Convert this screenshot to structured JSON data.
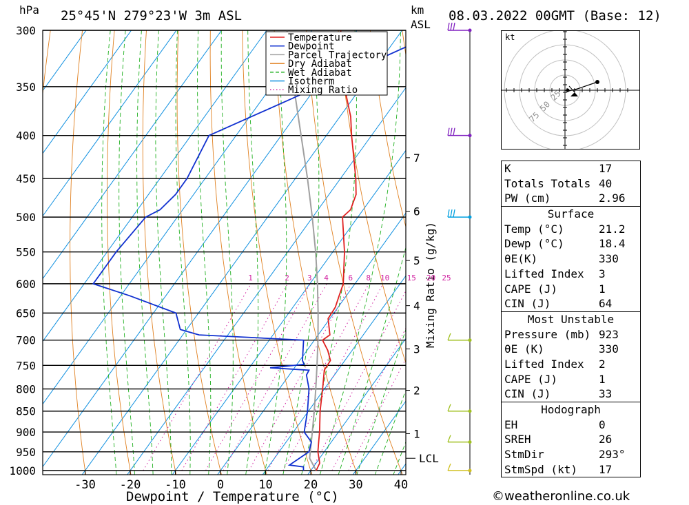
{
  "header": {
    "pressure_unit": "hPa",
    "location": "25°45'N  279°23'W  3m  ASL",
    "km_label": "km",
    "asl_label": "ASL",
    "datetime": "08.03.2022  00GMT  (Base: 12)"
  },
  "legend": {
    "items": [
      {
        "label": "Temperature",
        "color": "#e02020",
        "style": "solid"
      },
      {
        "label": "Dewpoint",
        "color": "#1030d0",
        "style": "solid"
      },
      {
        "label": "Parcel Trajectory",
        "color": "#a0a0a0",
        "style": "solid"
      },
      {
        "label": "Dry Adiabat",
        "color": "#e08020",
        "style": "solid"
      },
      {
        "label": "Wet Adiabat",
        "color": "#20b020",
        "style": "dashed"
      },
      {
        "label": "Isotherm",
        "color": "#1090e0",
        "style": "solid"
      },
      {
        "label": "Mixing Ratio",
        "color": "#d020a0",
        "style": "dotted"
      }
    ]
  },
  "chart_data": {
    "type": "line",
    "diagram": "skew-T log-P",
    "xlabel": "Dewpoint / Temperature (°C)",
    "y_unit": "hPa",
    "x_ticks": [
      -30,
      -20,
      -10,
      0,
      10,
      20,
      30,
      40
    ],
    "pressure_levels": [
      300,
      350,
      400,
      450,
      500,
      550,
      600,
      650,
      700,
      750,
      800,
      850,
      900,
      950,
      1000
    ],
    "ylim": [
      1000,
      300
    ],
    "km_ticks": [
      {
        "label": "7",
        "p": 425
      },
      {
        "label": "6",
        "p": 492
      },
      {
        "label": "5",
        "p": 563
      },
      {
        "label": "4",
        "p": 637
      },
      {
        "label": "3",
        "p": 717
      },
      {
        "label": "2",
        "p": 803
      },
      {
        "label": "1",
        "p": 904
      }
    ],
    "lcl_label": "LCL",
    "lcl_pressure": 967,
    "mixing_ratio_label": "Mixing Ratio (g/kg)",
    "mixing_ratio_values": [
      "1",
      "2",
      "3",
      "4",
      "6",
      "8",
      "10",
      "15",
      "20",
      "25"
    ],
    "series": [
      {
        "name": "Temperature",
        "color": "#e02020",
        "points": [
          [
            1000,
            21.2
          ],
          [
            980,
            20.8
          ],
          [
            950,
            18.6
          ],
          [
            925,
            17.2
          ],
          [
            900,
            15.8
          ],
          [
            850,
            12.6
          ],
          [
            800,
            9.6
          ],
          [
            760,
            7.0
          ],
          [
            740,
            6.8
          ],
          [
            720,
            4.6
          ],
          [
            700,
            1.8
          ],
          [
            690,
            2.6
          ],
          [
            660,
            -0.4
          ],
          [
            640,
            -0.6
          ],
          [
            620,
            -1.6
          ],
          [
            600,
            -2.6
          ],
          [
            550,
            -7.4
          ],
          [
            500,
            -13.4
          ],
          [
            490,
            -12.8
          ],
          [
            470,
            -14.0
          ],
          [
            450,
            -16.6
          ],
          [
            400,
            -24.4
          ],
          [
            380,
            -27.6
          ],
          [
            350,
            -33.8
          ],
          [
            300,
            -43.6
          ]
        ]
      },
      {
        "name": "Dewpoint",
        "color": "#1030d0",
        "points": [
          [
            1000,
            18.4
          ],
          [
            990,
            17.8
          ],
          [
            985,
            14.4
          ],
          [
            950,
            16.6
          ],
          [
            925,
            15.6
          ],
          [
            900,
            12.4
          ],
          [
            850,
            9.8
          ],
          [
            800,
            6.6
          ],
          [
            770,
            3.8
          ],
          [
            760,
            3.6
          ],
          [
            755,
            -5.4
          ],
          [
            748,
            1.6
          ],
          [
            740,
            0.6
          ],
          [
            700,
            -2.4
          ],
          [
            695,
            -14.4
          ],
          [
            690,
            -26.4
          ],
          [
            680,
            -31.4
          ],
          [
            650,
            -35.0
          ],
          [
            620,
            -48.0
          ],
          [
            600,
            -58.0
          ],
          [
            550,
            -58.0
          ],
          [
            500,
            -57.0
          ],
          [
            490,
            -55.0
          ],
          [
            470,
            -54.0
          ],
          [
            450,
            -54.0
          ],
          [
            400,
            -56.0
          ],
          [
            360,
            -43.0
          ],
          [
            300,
            -21.0
          ]
        ]
      },
      {
        "name": "Parcel Trajectory",
        "color": "#a0a0a0",
        "points": [
          [
            1000,
            21.2
          ],
          [
            967,
            17.8
          ],
          [
            950,
            16.9
          ],
          [
            900,
            14.2
          ],
          [
            850,
            11.3
          ],
          [
            800,
            8.1
          ],
          [
            750,
            4.6
          ],
          [
            700,
            0.8
          ],
          [
            650,
            -3.5
          ],
          [
            600,
            -8.3
          ],
          [
            550,
            -13.8
          ],
          [
            500,
            -20.1
          ],
          [
            450,
            -27.3
          ],
          [
            400,
            -35.6
          ],
          [
            350,
            -45.0
          ],
          [
            300,
            -55.5
          ]
        ]
      }
    ],
    "wind_barbs": [
      {
        "p": 300,
        "color": "#8020c0"
      },
      {
        "p": 400,
        "color": "#8020c0"
      },
      {
        "p": 500,
        "color": "#00a0e0"
      },
      {
        "p": 700,
        "color": "#a0c020"
      },
      {
        "p": 850,
        "color": "#a0c020"
      },
      {
        "p": 925,
        "color": "#a0c020"
      },
      {
        "p": 1000,
        "color": "#d0c020"
      }
    ]
  },
  "hodograph": {
    "unit_label": "kt",
    "rings": [
      "25",
      "50",
      "75"
    ]
  },
  "indices": {
    "rows": [
      {
        "label": "K",
        "value": "17"
      },
      {
        "label": "Totals Totals",
        "value": "40"
      },
      {
        "label": "PW (cm)",
        "value": "2.96"
      }
    ]
  },
  "surface": {
    "title": "Surface",
    "rows": [
      {
        "label": "Temp (°C)",
        "value": "21.2"
      },
      {
        "label": "Dewp (°C)",
        "value": "18.4"
      },
      {
        "label": "θE(K)",
        "value": "330"
      },
      {
        "label": "Lifted Index",
        "value": "3"
      },
      {
        "label": "CAPE (J)",
        "value": "1"
      },
      {
        "label": "CIN (J)",
        "value": "64"
      }
    ]
  },
  "most_unstable": {
    "title": "Most Unstable",
    "rows": [
      {
        "label": "Pressure (mb)",
        "value": "923"
      },
      {
        "label": "θE (K)",
        "value": "330"
      },
      {
        "label": "Lifted Index",
        "value": "2"
      },
      {
        "label": "CAPE (J)",
        "value": "1"
      },
      {
        "label": "CIN (J)",
        "value": "33"
      }
    ]
  },
  "hodograph_table": {
    "title": "Hodograph",
    "rows": [
      {
        "label": "EH",
        "value": "0"
      },
      {
        "label": "SREH",
        "value": "26"
      },
      {
        "label": "StmDir",
        "value": "293°"
      },
      {
        "label": "StmSpd (kt)",
        "value": "17"
      }
    ]
  },
  "credit": "©weatheronline.co.uk"
}
